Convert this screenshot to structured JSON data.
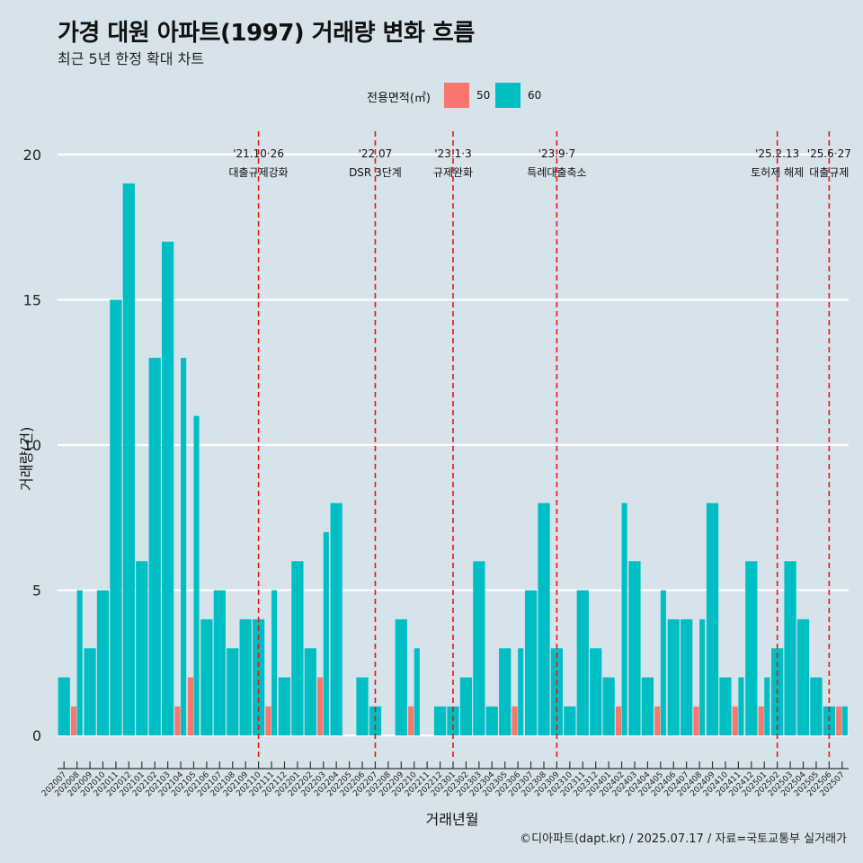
{
  "header": {
    "title": "가경 대원 아파트(1997) 거래량 변화 흐름",
    "subtitle": "최근 5년 한정 확대 차트"
  },
  "legend": {
    "title": "전용면적(㎡)",
    "items": [
      {
        "label": "50",
        "color": "#f8766d"
      },
      {
        "label": "60",
        "color": "#00bfc4"
      }
    ]
  },
  "caption": "©디아파트(dapt.kr) / 2025.07.17 / 자료=국토교통부 실거래가",
  "chart_data": {
    "type": "bar",
    "title": "가경 대원 아파트(1997) 거래량 변화 흐름",
    "subtitle": "최근 5년 한정 확대 차트",
    "xlabel": "거래년월",
    "ylabel": "거래량(건)",
    "ylim": [
      -0.8,
      20.8
    ],
    "yticks": [
      0,
      5,
      10,
      15,
      20
    ],
    "categories": [
      "202007",
      "202008",
      "202009",
      "202010",
      "202011",
      "202012",
      "202101",
      "202102",
      "202103",
      "202104",
      "202105",
      "202106",
      "202107",
      "202108",
      "202109",
      "202110",
      "202111",
      "202112",
      "202201",
      "202202",
      "202203",
      "202204",
      "202205",
      "202206",
      "202207",
      "202208",
      "202209",
      "202210",
      "202211",
      "202212",
      "202301",
      "202302",
      "202303",
      "202304",
      "202305",
      "202306",
      "202307",
      "202308",
      "202309",
      "202310",
      "202311",
      "202312",
      "202401",
      "202402",
      "202403",
      "202404",
      "202405",
      "202406",
      "202407",
      "202408",
      "202409",
      "202410",
      "202411",
      "202412",
      "202501",
      "202502",
      "202503",
      "202504",
      "202505",
      "202506",
      "202507"
    ],
    "series": [
      {
        "name": "50",
        "color": "#f8766d",
        "values": [
          0,
          1,
          0,
          0,
          0,
          0,
          0,
          0,
          0,
          1,
          2,
          0,
          0,
          0,
          0,
          0,
          1,
          0,
          0,
          0,
          2,
          0,
          0,
          0,
          0,
          0,
          0,
          1,
          0,
          0,
          0,
          0,
          0,
          0,
          0,
          1,
          0,
          0,
          0,
          0,
          0,
          0,
          0,
          1,
          0,
          0,
          1,
          0,
          0,
          1,
          0,
          0,
          1,
          0,
          1,
          0,
          0,
          0,
          0,
          0,
          1
        ]
      },
      {
        "name": "60",
        "color": "#00bfc4",
        "values": [
          2,
          5,
          3,
          5,
          15,
          19,
          6,
          13,
          17,
          13,
          11,
          4,
          5,
          3,
          4,
          4,
          5,
          2,
          6,
          3,
          7,
          8,
          0,
          2,
          1,
          0,
          4,
          3,
          0,
          1,
          1,
          2,
          6,
          1,
          3,
          3,
          5,
          8,
          3,
          1,
          5,
          3,
          2,
          8,
          6,
          2,
          5,
          4,
          4,
          4,
          8,
          2,
          2,
          6,
          2,
          3,
          6,
          4,
          2,
          1,
          1
        ]
      }
    ],
    "events": [
      {
        "date": "'21.10·26",
        "label": "대출규제강화",
        "category": "202110"
      },
      {
        "date": "'22.07",
        "label": "DSR 3단계",
        "category": "202207"
      },
      {
        "date": "'23.1·3",
        "label": "규제완화",
        "category": "202301"
      },
      {
        "date": "'23.9·7",
        "label": "특례대출축소",
        "category": "202309"
      },
      {
        "date": "'25.2.13",
        "label": "토허제 해제",
        "category": "202502"
      },
      {
        "date": "'25.6·27",
        "label": "대출규제",
        "category": "202506"
      }
    ]
  }
}
